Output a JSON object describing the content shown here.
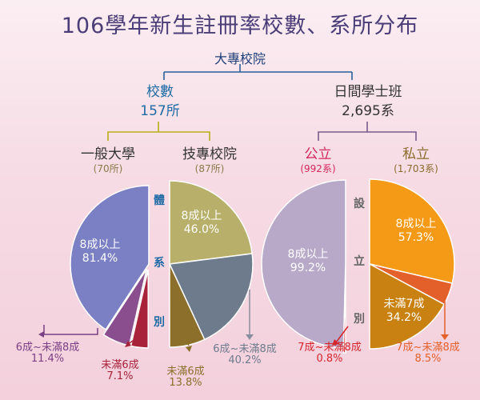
{
  "title": "106學年新生註冊率校數、系所分布",
  "root": "大專校院",
  "left": {
    "head": "校數",
    "total": "157所",
    "branches": [
      {
        "name": "一般大學",
        "count": "(70所)"
      },
      {
        "name": "技專校院",
        "count": "(87所)"
      }
    ],
    "vertical": [
      "體",
      "系",
      "別"
    ]
  },
  "right": {
    "head": "日間學士班",
    "total": "2,695系",
    "branches": [
      {
        "name": "公立",
        "count": "(992系)"
      },
      {
        "name": "私立",
        "count": "(1,703系)"
      }
    ],
    "vertical": [
      "設",
      "立",
      "別"
    ]
  },
  "chart_data": [
    {
      "type": "pie",
      "title": "一般大學",
      "categories": [
        "8成以上",
        "6成~未滿8成",
        "未滿6成"
      ],
      "values": [
        81.4,
        11.4,
        7.1
      ],
      "labels": [
        "81.4%",
        "11.4%",
        "7.1%"
      ],
      "colors": [
        "#7b7fc4",
        "#8a4e8f",
        "#a8233a"
      ]
    },
    {
      "type": "pie",
      "title": "技專校院",
      "categories": [
        "8成以上",
        "6成~未滿8成",
        "未滿6成"
      ],
      "values": [
        46.0,
        40.2,
        13.8
      ],
      "labels": [
        "46.0%",
        "40.2%",
        "13.8%"
      ],
      "colors": [
        "#b8b06a",
        "#6d7b8d",
        "#8b6f2a"
      ]
    },
    {
      "type": "pie",
      "title": "公立",
      "categories": [
        "8成以上",
        "7成~未滿8成"
      ],
      "values": [
        99.2,
        0.8
      ],
      "labels": [
        "99.2%",
        "0.8%"
      ],
      "colors": [
        "#b9a9c9",
        "#d6242c"
      ]
    },
    {
      "type": "pie",
      "title": "私立",
      "categories": [
        "8成以上",
        "7成~未滿8成",
        "未滿7成"
      ],
      "values": [
        57.3,
        8.5,
        34.2
      ],
      "labels": [
        "57.3%",
        "8.5%",
        "34.2%"
      ],
      "colors": [
        "#f49a16",
        "#e4602a",
        "#c98211"
      ]
    }
  ]
}
